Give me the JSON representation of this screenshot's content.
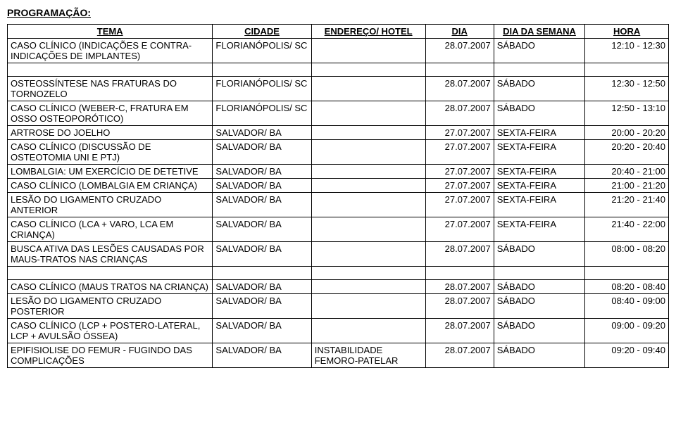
{
  "section_title": "PROGRAMAÇÃO:",
  "headers": {
    "tema": "TEMA",
    "cidade": "CIDADE",
    "endereco": "ENDEREÇO/ HOTEL",
    "dia": "DIA",
    "dia_semana": "DIA DA SEMANA",
    "hora": "HORA"
  },
  "group1": [
    {
      "tema": "CASO CLÍNICO (INDICAÇÕES E CONTRA-INDICAÇÕES DE IMPLANTES)",
      "cidade": "FLORIANÓPOLIS/ SC",
      "end": "",
      "dia": "28.07.2007",
      "diasem": "SÁBADO",
      "hora": "12:10 - 12:30"
    }
  ],
  "group2": [
    {
      "tema": "OSTEOSSÍNTESE NAS FRATURAS DO TORNOZELO",
      "cidade": "FLORIANÓPOLIS/ SC",
      "end": "",
      "dia": "28.07.2007",
      "diasem": "SÁBADO",
      "hora": "12:30 - 12:50"
    },
    {
      "tema": "CASO CLÍNICO (WEBER-C, FRATURA EM OSSO OSTEOPORÓTICO)",
      "cidade": "FLORIANÓPOLIS/ SC",
      "end": "",
      "dia": "28.07.2007",
      "diasem": "SÁBADO",
      "hora": "12:50 - 13:10"
    },
    {
      "tema": "ARTROSE DO JOELHO",
      "cidade": "SALVADOR/ BA",
      "end": "",
      "dia": "27.07.2007",
      "diasem": "SEXTA-FEIRA",
      "hora": "20:00 - 20:20"
    },
    {
      "tema": "CASO CLÍNICO (DISCUSSÃO DE OSTEOTOMIA UNI E PTJ)",
      "cidade": "SALVADOR/ BA",
      "end": "",
      "dia": "27.07.2007",
      "diasem": "SEXTA-FEIRA",
      "hora": "20:20 - 20:40"
    },
    {
      "tema": "LOMBALGIA: UM EXERCÍCIO DE DETETIVE",
      "cidade": "SALVADOR/ BA",
      "end": "",
      "dia": "27.07.2007",
      "diasem": "SEXTA-FEIRA",
      "hora": "20:40 - 21:00"
    },
    {
      "tema": "CASO CLÍNICO (LOMBALGIA EM CRIANÇA)",
      "cidade": "SALVADOR/ BA",
      "end": "",
      "dia": "27.07.2007",
      "diasem": "SEXTA-FEIRA",
      "hora": "21:00 - 21:20"
    },
    {
      "tema": "LESÃO DO LIGAMENTO CRUZADO ANTERIOR",
      "cidade": "SALVADOR/ BA",
      "end": "",
      "dia": "27.07.2007",
      "diasem": "SEXTA-FEIRA",
      "hora": "21:20 - 21:40"
    },
    {
      "tema": "CASO CLÍNICO (LCA + VARO, LCA EM CRIANÇA)",
      "cidade": "SALVADOR/ BA",
      "end": "",
      "dia": "27.07.2007",
      "diasem": "SEXTA-FEIRA",
      "hora": "21:40 - 22:00"
    },
    {
      "tema": "BUSCA ATIVA DAS LESÕES CAUSADAS POR MAUS-TRATOS NAS CRIANÇAS",
      "cidade": "SALVADOR/ BA",
      "end": "",
      "dia": "28.07.2007",
      "diasem": "SÁBADO",
      "hora": "08:00 - 08:20"
    }
  ],
  "group3": [
    {
      "tema": "CASO CLÍNICO (MAUS TRATOS NA CRIANÇA)",
      "cidade": "SALVADOR/ BA",
      "end": "",
      "dia": "28.07.2007",
      "diasem": "SÁBADO",
      "hora": "08:20 - 08:40"
    },
    {
      "tema": "LESÃO DO LIGAMENTO CRUZADO POSTERIOR",
      "cidade": "SALVADOR/ BA",
      "end": "",
      "dia": "28.07.2007",
      "diasem": "SÁBADO",
      "hora": "08:40 - 09:00"
    },
    {
      "tema": "CASO CLÍNICO (LCP + POSTERO-LATERAL, LCP + AVULSÃO ÓSSEA)",
      "cidade": "SALVADOR/ BA",
      "end": "",
      "dia": "28.07.2007",
      "diasem": "SÁBADO",
      "hora": "09:00 - 09:20"
    },
    {
      "tema": "EPIFISIOLISE DO FEMUR - FUGINDO DAS COMPLICAÇÕES",
      "cidade": "SALVADOR/ BA",
      "end": "INSTABILIDADE FEMORO-PATELAR",
      "dia": "28.07.2007",
      "diasem": "SÁBADO",
      "hora": "09:20 - 09:40"
    }
  ]
}
